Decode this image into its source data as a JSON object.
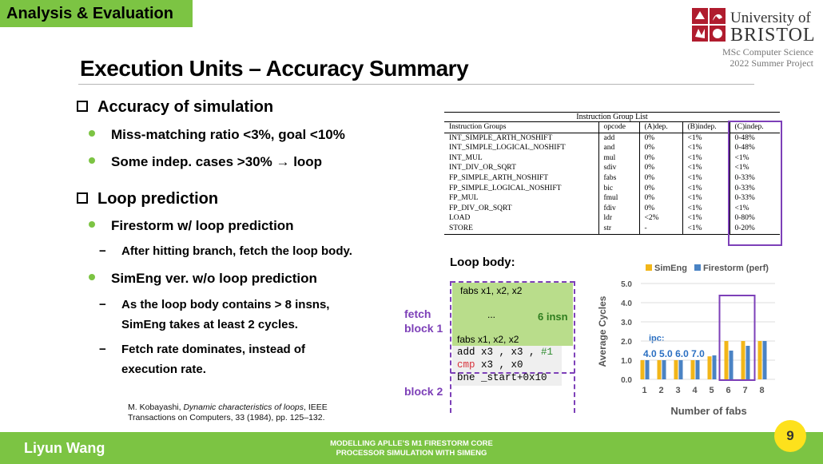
{
  "section_tag": "Analysis & Evaluation",
  "university": {
    "line1": "University of",
    "line2": "BRISTOL"
  },
  "project_note": [
    "MSc Computer Science",
    "2022 Summer Project"
  ],
  "title": "Execution Units – Accuracy Summary",
  "left": {
    "heading1": "Accuracy of simulation",
    "bullet1": "Miss-matching ratio <3%, goal <10%",
    "bullet2": "Some indep. cases >30% → loop",
    "heading2": "Loop prediction",
    "bullet3": "Firestorm w/ loop prediction",
    "sub1": "After hitting branch, fetch the loop body.",
    "bullet4": "SimEng ver. w/o loop prediction",
    "sub2": [
      "As the loop body contains > 8 insns,",
      "SimEng takes at least 2 cycles."
    ],
    "sub3": [
      "Fetch rate dominates, instead of",
      "execution rate."
    ]
  },
  "reference": {
    "author": "M. Kobayashi, ",
    "title_italic": "Dynamic characteristics of loops",
    "rest1": ", IEEE",
    "line2": "Transactions on Computers, 33 (1984), pp. 125–132."
  },
  "table": {
    "caption": "Instruction Group List",
    "headers": [
      "Instruction Groups",
      "opcode",
      "(A)dep.",
      "(B)indep.",
      "(C)indep."
    ],
    "rows": [
      [
        "INT_SIMPLE_ARTH_NOSHIFT",
        "add",
        "0%",
        "<1%",
        "0-48%"
      ],
      [
        "INT_SIMPLE_LOGICAL_NOSHIFT",
        "and",
        "0%",
        "<1%",
        "0-48%"
      ],
      [
        "INT_MUL",
        "mul",
        "0%",
        "<1%",
        "<1%"
      ],
      [
        "INT_DIV_OR_SQRT",
        "sdiv",
        "0%",
        "<1%",
        "<1%"
      ],
      [
        "FP_SIMPLE_ARTH_NOSHIFT",
        "fabs",
        "0%",
        "<1%",
        "0-33%"
      ],
      [
        "FP_SIMPLE_LOGICAL_NOSHIFT",
        "bic",
        "0%",
        "<1%",
        "0-33%"
      ],
      [
        "FP_MUL",
        "fmul",
        "0%",
        "<1%",
        "0-33%"
      ],
      [
        "FP_DIV_OR_SQRT",
        "fdiv",
        "0%",
        "<1%",
        "<1%"
      ],
      [
        "LOAD",
        "ldr",
        "<2%",
        "<1%",
        "0-80%"
      ],
      [
        "STORE",
        "str",
        "-",
        "<1%",
        "0-20%"
      ]
    ]
  },
  "loop_body": {
    "title": "Loop body:",
    "line_top": "fabs x1, x2, x2",
    "ellipsis": "...",
    "insn_count": "6 insn",
    "line_bottom": "fabs x1, x2, x2",
    "code": [
      {
        "op": "add",
        "args": " x3 , x3 , ",
        "imm": "#1"
      },
      {
        "op": "cmp",
        "args": " x3 , x0"
      },
      {
        "op": "bne",
        "args": " _start+0x10"
      }
    ],
    "fetch_block1": [
      "fetch",
      "block 1"
    ],
    "fetch_block2": "block 2"
  },
  "chart_data": {
    "type": "bar",
    "categories": [
      "1",
      "2",
      "3",
      "4",
      "5",
      "6",
      "7",
      "8"
    ],
    "series": [
      {
        "name": "SimEng",
        "values": [
          1.0,
          1.0,
          1.0,
          1.0,
          1.2,
          2.0,
          2.0,
          2.0
        ]
      },
      {
        "name": "Firestorm (perf)",
        "values": [
          1.0,
          1.0,
          1.0,
          1.0,
          1.25,
          1.5,
          1.75,
          2.0
        ]
      }
    ],
    "xlabel": "Number of fabs",
    "ylabel": "Average Cycles",
    "ylim": [
      0,
      5
    ],
    "yticks": [
      "0.0",
      "1.0",
      "2.0",
      "3.0",
      "4.0",
      "5.0"
    ],
    "highlight_categories": [
      "6",
      "7"
    ],
    "ipc_label": "ipc:",
    "ipc_values": [
      "4.0",
      "5.0",
      "6.0",
      "7.0"
    ],
    "legend_position": "top",
    "colors": {
      "SimEng": "#f2b619",
      "Firestorm (perf)": "#4a83c4",
      "highlight": "#7d40b8"
    }
  },
  "footer": {
    "author": "Liyun Wang",
    "title_lines": [
      "MODELLING APLLE’S M1 FIRESTORM CORE",
      "PROCESSOR SIMULATION WITH SIMENG"
    ]
  },
  "page_number": "9",
  "colors": {
    "accent_green": "#7cc443",
    "purple": "#7d40b8",
    "badge_yellow": "#fde11c"
  }
}
